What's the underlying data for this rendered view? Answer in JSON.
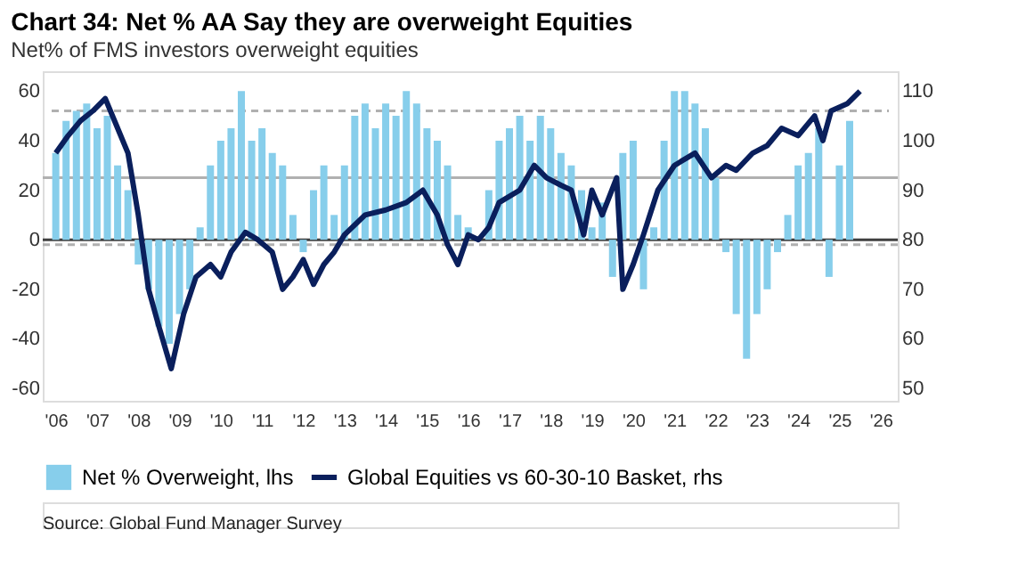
{
  "chart_data": {
    "type": "bar",
    "title": "Chart 34: Net % AA Say they are overweight Equities",
    "subtitle": "Net% of FMS investors overweight equities",
    "annotations": [
      "Source: Global Fund Manager Survey"
    ],
    "xlim": [
      2005.9,
      2026.2
    ],
    "xticks": [
      {
        "value": 2006,
        "label": "'06"
      },
      {
        "value": 2007,
        "label": "'07"
      },
      {
        "value": 2008,
        "label": "'08"
      },
      {
        "value": 2009,
        "label": "'09"
      },
      {
        "value": 2010,
        "label": "'10"
      },
      {
        "value": 2011,
        "label": "'11"
      },
      {
        "value": 2012,
        "label": "'12"
      },
      {
        "value": 2013,
        "label": "'13"
      },
      {
        "value": 2014,
        "label": "'14"
      },
      {
        "value": 2015,
        "label": "'15"
      },
      {
        "value": 2016,
        "label": "'16"
      },
      {
        "value": 2017,
        "label": "'17"
      },
      {
        "value": 2018,
        "label": "'18"
      },
      {
        "value": 2019,
        "label": "'19"
      },
      {
        "value": 2020,
        "label": "'20"
      },
      {
        "value": 2021,
        "label": "'21"
      },
      {
        "value": 2022,
        "label": "'22"
      },
      {
        "value": 2023,
        "label": "'23"
      },
      {
        "value": 2024,
        "label": "'24"
      },
      {
        "value": 2025,
        "label": "'25"
      },
      {
        "value": 2026,
        "label": "'26"
      }
    ],
    "ylim": [
      -65,
      68
    ],
    "yticks": [
      -60,
      -40,
      -20,
      0,
      20,
      40,
      60
    ],
    "y2lim": [
      47.5,
      114
    ],
    "y2ticks": [
      50,
      60,
      70,
      80,
      90,
      100,
      110
    ],
    "legend": "bottom",
    "grid": false,
    "ref_lines": [
      {
        "axis": "y",
        "value": 52,
        "color": "#b0b0b0",
        "line_style": "dashed"
      },
      {
        "axis": "y",
        "value": 25,
        "color": "#b0b0b0",
        "line_style": "solid"
      },
      {
        "axis": "y",
        "value": 0,
        "color": "#404040",
        "line_style": "solid"
      },
      {
        "axis": "y",
        "value": -2,
        "color": "#b0b0b0",
        "line_style": "dashed"
      }
    ],
    "series": [
      {
        "name": "Net % Overweight, lhs",
        "type": "bar",
        "color": "#87ceeb",
        "x": [
          2006,
          2006.25,
          2006.5,
          2006.75,
          2007,
          2007.25,
          2007.5,
          2007.75,
          2008,
          2008.25,
          2008.5,
          2008.75,
          2009,
          2009.25,
          2009.5,
          2009.75,
          2010,
          2010.25,
          2010.5,
          2010.75,
          2011,
          2011.25,
          2011.5,
          2011.75,
          2012,
          2012.25,
          2012.5,
          2012.75,
          2013,
          2013.25,
          2013.5,
          2013.75,
          2014,
          2014.25,
          2014.5,
          2014.75,
          2015,
          2015.25,
          2015.5,
          2015.75,
          2016,
          2016.25,
          2016.5,
          2016.75,
          2017,
          2017.25,
          2017.5,
          2017.75,
          2018,
          2018.25,
          2018.5,
          2018.75,
          2019,
          2019.25,
          2019.5,
          2019.75,
          2020,
          2020.25,
          2020.5,
          2020.75,
          2021,
          2021.25,
          2021.5,
          2021.75,
          2022,
          2022.25,
          2022.5,
          2022.75,
          2023,
          2023.25,
          2023.5,
          2023.75,
          2024,
          2024.25,
          2024.5,
          2024.75,
          2025,
          2025.25
        ],
        "values": [
          35,
          48,
          52,
          55,
          45,
          50,
          30,
          20,
          -10,
          -20,
          -35,
          -42,
          -30,
          -20,
          5,
          30,
          40,
          45,
          60,
          40,
          45,
          35,
          30,
          10,
          -5,
          20,
          30,
          10,
          30,
          50,
          55,
          45,
          55,
          50,
          60,
          55,
          45,
          40,
          30,
          10,
          5,
          0,
          20,
          40,
          45,
          50,
          40,
          50,
          45,
          35,
          30,
          20,
          5,
          15,
          -15,
          35,
          40,
          -20,
          5,
          40,
          60,
          60,
          55,
          45,
          25,
          -5,
          -30,
          -48,
          -30,
          -20,
          -5,
          10,
          30,
          35,
          45,
          -15,
          30,
          48
        ]
      },
      {
        "name": "Global Equities vs 60-30-10 Basket, rhs",
        "type": "line",
        "axis": "y2",
        "color": "#0a1f5c",
        "x": [
          2006,
          2006.3,
          2006.6,
          2006.9,
          2007.2,
          2007.5,
          2007.75,
          2008,
          2008.25,
          2008.5,
          2008.8,
          2009.1,
          2009.4,
          2009.75,
          2010,
          2010.25,
          2010.6,
          2010.9,
          2011.25,
          2011.5,
          2011.75,
          2012,
          2012.25,
          2012.5,
          2012.75,
          2013,
          2013.5,
          2014,
          2014.5,
          2014.9,
          2015.25,
          2015.5,
          2015.75,
          2016,
          2016.25,
          2016.5,
          2016.75,
          2017.25,
          2017.6,
          2017.9,
          2018.25,
          2018.5,
          2018.8,
          2019,
          2019.25,
          2019.6,
          2019.75,
          2020,
          2020.25,
          2020.6,
          2021,
          2021.5,
          2021.9,
          2022.25,
          2022.5,
          2022.9,
          2023.25,
          2023.6,
          2024,
          2024.4,
          2024.6,
          2024.8,
          2025.2,
          2025.5
        ],
        "values": [
          97.5,
          101,
          104,
          106,
          108.5,
          102.5,
          97.5,
          85,
          70,
          62.5,
          54,
          65,
          72.5,
          75,
          72.5,
          77.5,
          81.5,
          80,
          77.5,
          70,
          72.5,
          76,
          71,
          75,
          77.5,
          81,
          85,
          86,
          87.5,
          90,
          85,
          79,
          75,
          81,
          80,
          82.5,
          87.5,
          90,
          95,
          92.5,
          91,
          90,
          81,
          90,
          85,
          92.5,
          70,
          75,
          81,
          90,
          95,
          97.5,
          92.5,
          95,
          94,
          97.5,
          99,
          102.5,
          101,
          105,
          100,
          106,
          107.5,
          110
        ]
      }
    ]
  }
}
